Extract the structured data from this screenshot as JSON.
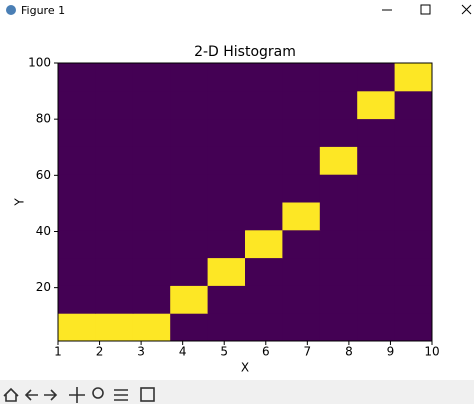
{
  "window": {
    "title": "Figure 1"
  },
  "chart_data": {
    "type": "histogram2d",
    "title": "2-D Histogram",
    "xlabel": "X",
    "ylabel": "Y",
    "xbins": [
      1,
      1.9,
      2.8,
      3.7,
      4.6,
      5.5,
      6.4,
      7.3,
      8.2,
      9.1,
      10
    ],
    "ybins": [
      1,
      10.9,
      20.8,
      30.7,
      40.6,
      50.5,
      60.4,
      70.3,
      80.2,
      90.1,
      100
    ],
    "counts": [
      [
        1,
        1,
        1,
        0,
        0,
        0,
        0,
        0,
        0,
        0
      ],
      [
        0,
        0,
        0,
        1,
        0,
        0,
        0,
        0,
        0,
        0
      ],
      [
        0,
        0,
        0,
        0,
        1,
        0,
        0,
        0,
        0,
        0
      ],
      [
        0,
        0,
        0,
        0,
        0,
        1,
        0,
        0,
        0,
        0
      ],
      [
        0,
        0,
        0,
        0,
        0,
        0,
        1,
        0,
        0,
        0
      ],
      [
        0,
        0,
        0,
        0,
        0,
        0,
        0,
        0,
        0,
        0
      ],
      [
        0,
        0,
        0,
        0,
        0,
        0,
        0,
        1,
        0,
        0
      ],
      [
        0,
        0,
        0,
        0,
        0,
        0,
        0,
        0,
        0,
        0
      ],
      [
        0,
        0,
        0,
        0,
        0,
        0,
        0,
        0,
        1,
        0
      ],
      [
        0,
        0,
        0,
        0,
        0,
        0,
        0,
        0,
        0,
        1
      ]
    ],
    "cmap": [
      "#440154",
      "#fde725"
    ],
    "xlim": [
      1,
      10
    ],
    "ylim": [
      1,
      100
    ],
    "xticks": [
      1,
      2,
      3,
      4,
      5,
      6,
      7,
      8,
      9,
      10
    ],
    "yticks": [
      20,
      40,
      60,
      80,
      100
    ]
  }
}
